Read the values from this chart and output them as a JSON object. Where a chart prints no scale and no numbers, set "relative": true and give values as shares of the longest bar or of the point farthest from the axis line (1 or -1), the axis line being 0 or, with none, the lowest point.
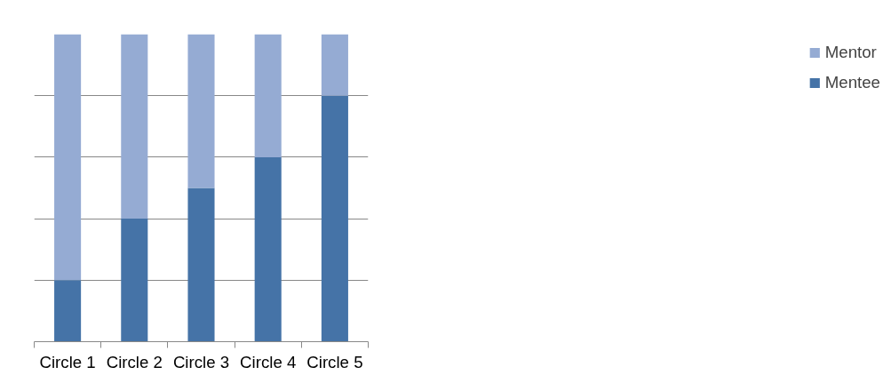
{
  "chart_data": {
    "type": "bar",
    "stacked": true,
    "relative": true,
    "categories": [
      "Circle 1",
      "Circle 2",
      "Circle 3",
      "Circle 4",
      "Circle 5"
    ],
    "series": [
      {
        "name": "Mentee",
        "color": "#4573a7",
        "values": [
          0.2,
          0.4,
          0.5,
          0.6,
          0.8
        ]
      },
      {
        "name": "Mentor",
        "color": "#95abd3",
        "values": [
          0.8,
          0.6,
          0.5,
          0.4,
          0.2
        ]
      }
    ],
    "grid": "y",
    "legend": "right"
  }
}
